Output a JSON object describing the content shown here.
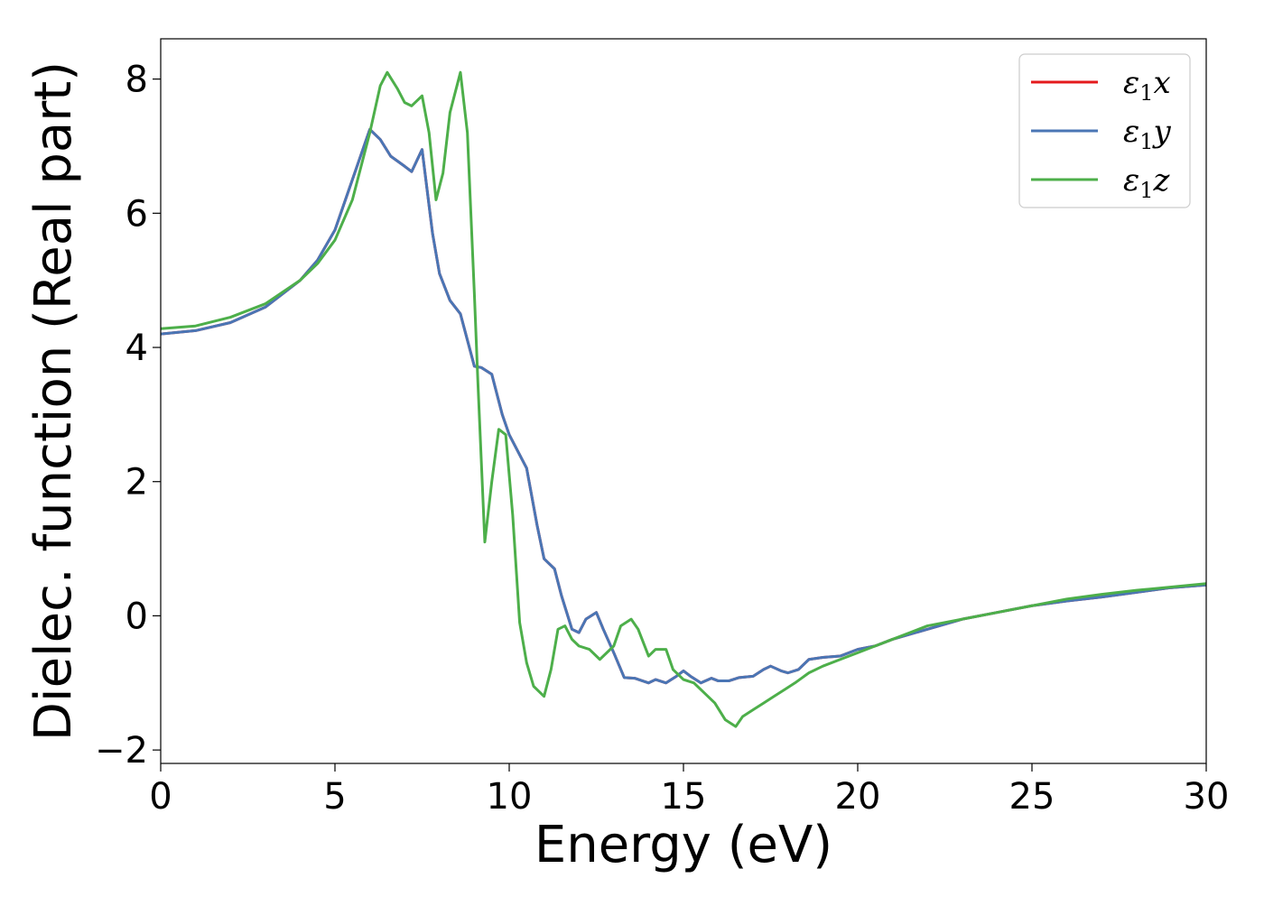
{
  "chart_data": {
    "type": "line",
    "title": "",
    "xlabel": "Energy (eV)",
    "ylabel": "Dielec. function (Real part)",
    "xlim": [
      0,
      30
    ],
    "ylim": [
      -2.2,
      8.6
    ],
    "xticks": [
      0,
      5,
      10,
      15,
      20,
      25,
      30
    ],
    "yticks": [
      -2,
      0,
      2,
      4,
      6,
      8
    ],
    "xtick_labels": [
      "0",
      "5",
      "10",
      "15",
      "20",
      "25",
      "30"
    ],
    "ytick_labels": [
      "−2",
      "0",
      "2",
      "4",
      "6",
      "8"
    ],
    "grid": false,
    "legend_position": "top-right",
    "series": [
      {
        "name": "ε1x",
        "color": "#e41a1c",
        "x": [
          0,
          1,
          2,
          3,
          4,
          4.5,
          5,
          5.5,
          6,
          6.3,
          6.6,
          7,
          7.2,
          7.5,
          7.8,
          8,
          8.3,
          8.6,
          9,
          9.2,
          9.5,
          9.8,
          10,
          10.5,
          10.8,
          11,
          11.3,
          11.5,
          11.8,
          12,
          12.2,
          12.5,
          12.7,
          13,
          13.3,
          13.6,
          14,
          14.2,
          14.5,
          14.8,
          15,
          15.2,
          15.5,
          15.8,
          16,
          16.3,
          16.6,
          17,
          17.3,
          17.5,
          17.8,
          18,
          18.3,
          18.6,
          19,
          19.5,
          20,
          20.5,
          21,
          22,
          23,
          24,
          25,
          26,
          27,
          28,
          29,
          30
        ],
        "y": [
          4.2,
          4.25,
          4.37,
          4.6,
          5.0,
          5.3,
          5.75,
          6.5,
          7.25,
          7.1,
          6.85,
          6.7,
          6.62,
          6.95,
          5.7,
          5.1,
          4.7,
          4.5,
          3.72,
          3.7,
          3.6,
          3.0,
          2.7,
          2.2,
          1.35,
          0.85,
          0.7,
          0.3,
          -0.2,
          -0.25,
          -0.05,
          0.05,
          -0.2,
          -0.55,
          -0.92,
          -0.93,
          -1.0,
          -0.95,
          -1.0,
          -0.9,
          -0.82,
          -0.9,
          -1.0,
          -0.93,
          -0.97,
          -0.97,
          -0.92,
          -0.9,
          -0.8,
          -0.75,
          -0.82,
          -0.85,
          -0.8,
          -0.65,
          -0.62,
          -0.6,
          -0.5,
          -0.45,
          -0.35,
          -0.2,
          -0.05,
          0.05,
          0.15,
          0.22,
          0.28,
          0.35,
          0.42,
          0.46
        ]
      },
      {
        "name": "ε1y",
        "color": "#4a76b5",
        "x": [
          0,
          1,
          2,
          3,
          4,
          4.5,
          5,
          5.5,
          6,
          6.3,
          6.6,
          7,
          7.2,
          7.5,
          7.8,
          8,
          8.3,
          8.6,
          9,
          9.2,
          9.5,
          9.8,
          10,
          10.5,
          10.8,
          11,
          11.3,
          11.5,
          11.8,
          12,
          12.2,
          12.5,
          12.7,
          13,
          13.3,
          13.6,
          14,
          14.2,
          14.5,
          14.8,
          15,
          15.2,
          15.5,
          15.8,
          16,
          16.3,
          16.6,
          17,
          17.3,
          17.5,
          17.8,
          18,
          18.3,
          18.6,
          19,
          19.5,
          20,
          20.5,
          21,
          22,
          23,
          24,
          25,
          26,
          27,
          28,
          29,
          30
        ],
        "y": [
          4.2,
          4.25,
          4.37,
          4.6,
          5.0,
          5.3,
          5.75,
          6.5,
          7.25,
          7.1,
          6.85,
          6.7,
          6.62,
          6.95,
          5.7,
          5.1,
          4.7,
          4.5,
          3.72,
          3.7,
          3.6,
          3.0,
          2.7,
          2.2,
          1.35,
          0.85,
          0.7,
          0.3,
          -0.2,
          -0.25,
          -0.05,
          0.05,
          -0.2,
          -0.55,
          -0.92,
          -0.93,
          -1.0,
          -0.95,
          -1.0,
          -0.9,
          -0.82,
          -0.9,
          -1.0,
          -0.93,
          -0.97,
          -0.97,
          -0.92,
          -0.9,
          -0.8,
          -0.75,
          -0.82,
          -0.85,
          -0.8,
          -0.65,
          -0.62,
          -0.6,
          -0.5,
          -0.45,
          -0.35,
          -0.2,
          -0.05,
          0.05,
          0.15,
          0.22,
          0.28,
          0.35,
          0.42,
          0.46
        ]
      },
      {
        "name": "ε1z",
        "color": "#4daf4a",
        "x": [
          0,
          1,
          2,
          3,
          4,
          4.5,
          5,
          5.5,
          6,
          6.3,
          6.5,
          6.8,
          7,
          7.2,
          7.5,
          7.7,
          7.9,
          8.1,
          8.3,
          8.6,
          8.8,
          9,
          9.1,
          9.3,
          9.5,
          9.7,
          9.9,
          10.1,
          10.3,
          10.5,
          10.7,
          11,
          11.2,
          11.4,
          11.6,
          11.8,
          12,
          12.3,
          12.6,
          13,
          13.2,
          13.5,
          13.7,
          14,
          14.2,
          14.5,
          14.7,
          15,
          15.3,
          15.6,
          15.9,
          16.2,
          16.5,
          16.7,
          17,
          17.3,
          17.6,
          17.9,
          18.2,
          18.6,
          19,
          19.5,
          20,
          20.5,
          21,
          21.5,
          22,
          23,
          24,
          25,
          26,
          27,
          28,
          29,
          30
        ],
        "y": [
          4.28,
          4.32,
          4.45,
          4.65,
          5.0,
          5.25,
          5.6,
          6.2,
          7.2,
          7.9,
          8.1,
          7.85,
          7.65,
          7.6,
          7.75,
          7.2,
          6.2,
          6.6,
          7.5,
          8.1,
          7.2,
          4.8,
          3.5,
          1.1,
          2.0,
          2.78,
          2.7,
          1.5,
          -0.1,
          -0.7,
          -1.05,
          -1.2,
          -0.8,
          -0.2,
          -0.15,
          -0.35,
          -0.45,
          -0.5,
          -0.65,
          -0.45,
          -0.15,
          -0.05,
          -0.2,
          -0.6,
          -0.5,
          -0.5,
          -0.8,
          -0.95,
          -1.0,
          -1.15,
          -1.3,
          -1.55,
          -1.65,
          -1.5,
          -1.4,
          -1.3,
          -1.2,
          -1.1,
          -1.0,
          -0.85,
          -0.75,
          -0.65,
          -0.55,
          -0.45,
          -0.35,
          -0.25,
          -0.15,
          -0.05,
          0.05,
          0.15,
          0.25,
          0.32,
          0.38,
          0.43,
          0.48
        ]
      }
    ]
  }
}
